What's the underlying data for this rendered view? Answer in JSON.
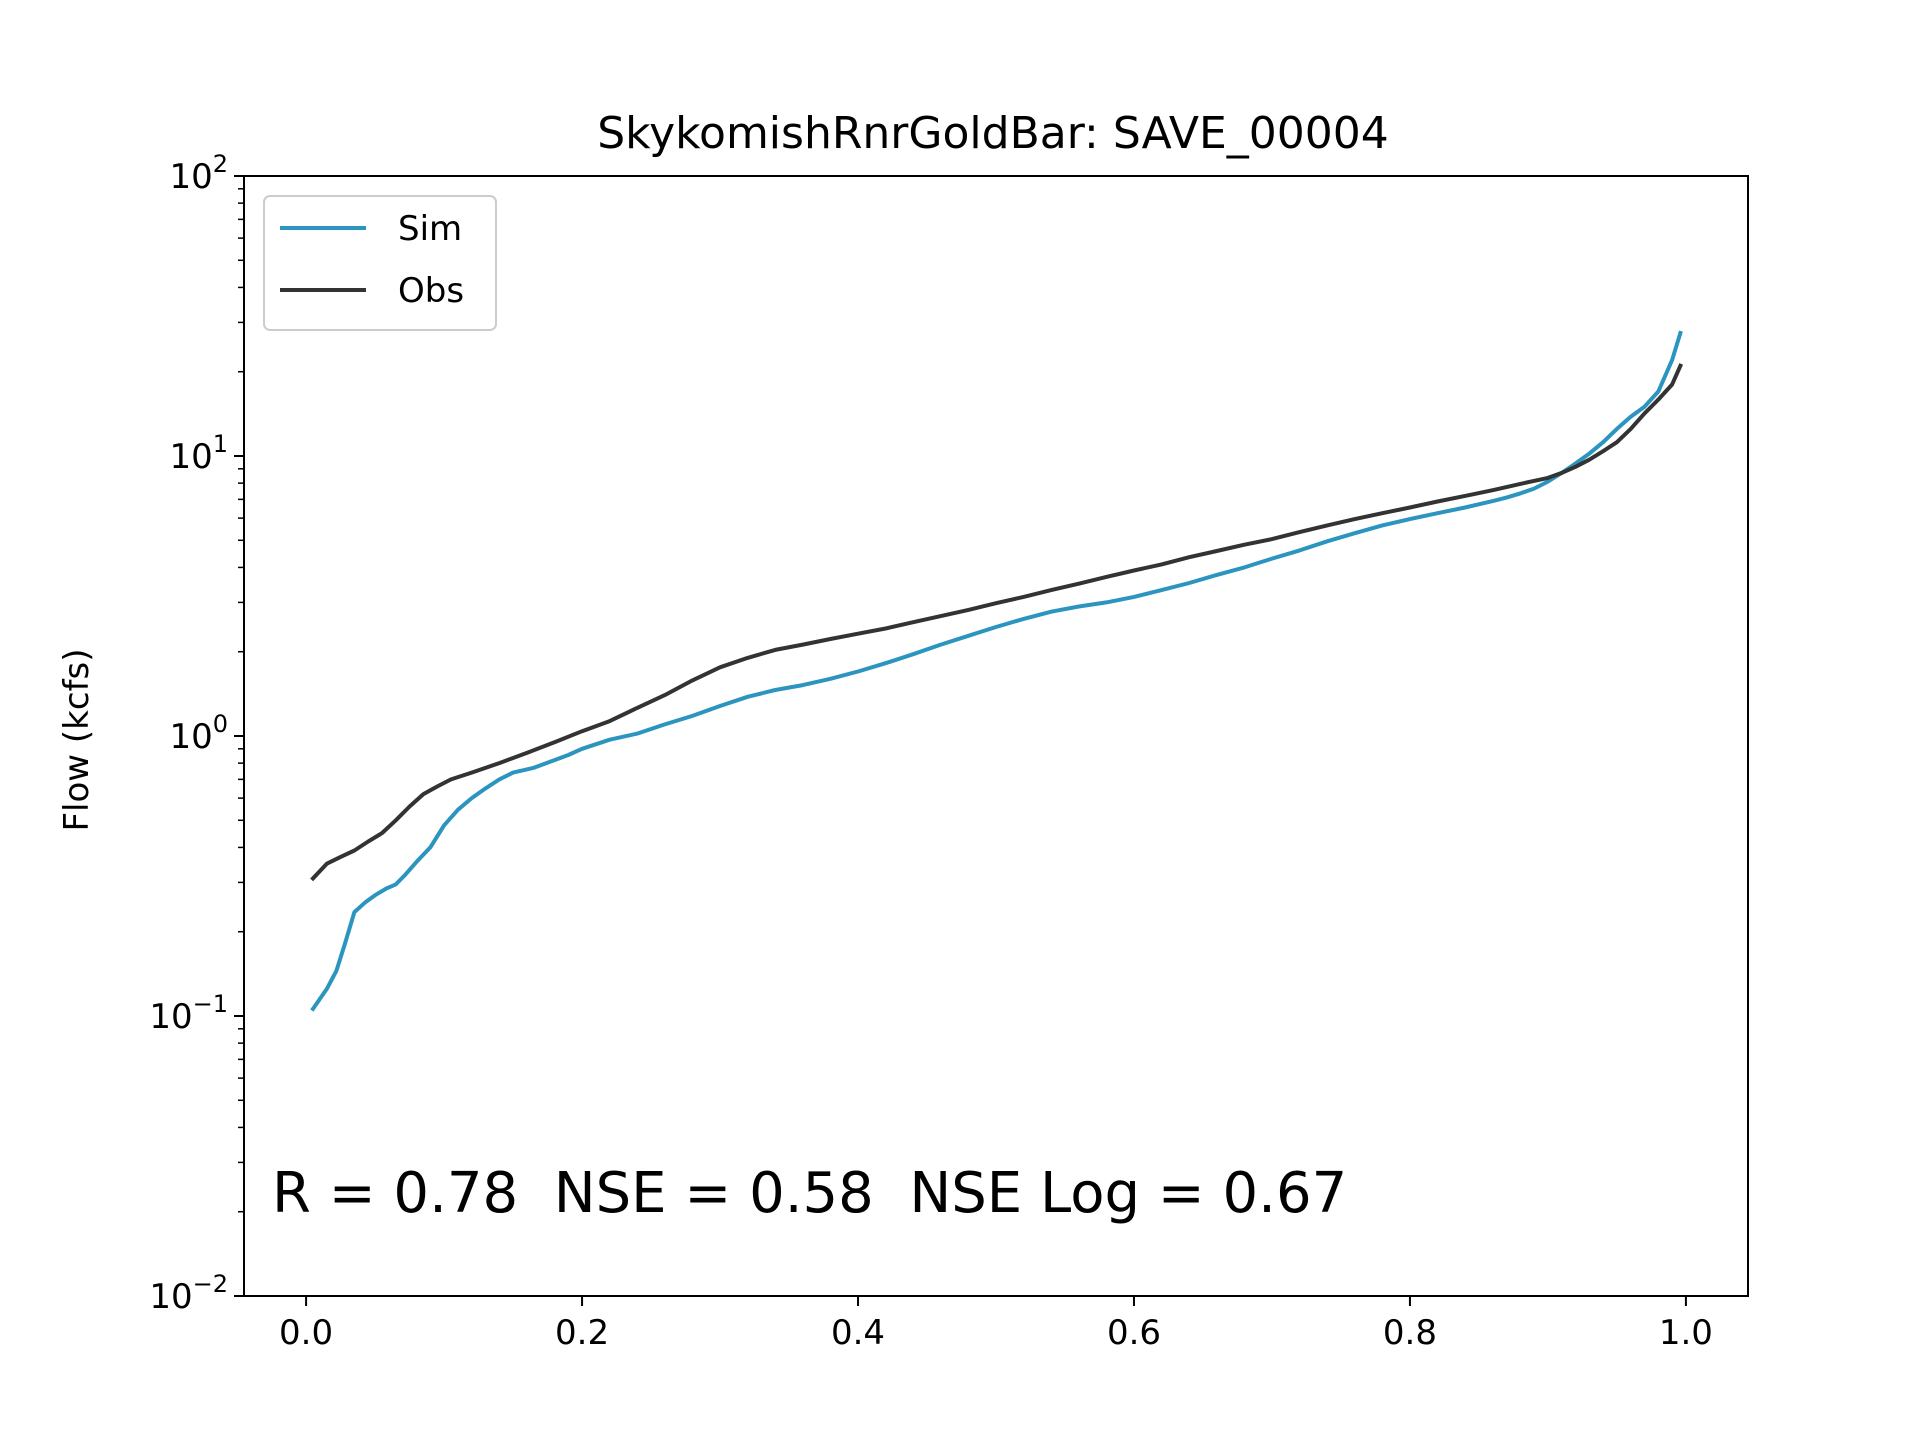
{
  "chart_data": {
    "type": "line",
    "title": "SkykomishRnrGoldBar: SAVE_00004",
    "xlabel": "",
    "ylabel": "Flow (kcfs)",
    "x_scale": "linear",
    "y_scale": "log",
    "xlim": [
      -0.045,
      1.045
    ],
    "ylim": [
      0.01,
      100
    ],
    "x_ticks": [
      0.0,
      0.2,
      0.4,
      0.6,
      0.8,
      1.0
    ],
    "x_tick_labels": [
      "0.0",
      "0.2",
      "0.4",
      "0.6",
      "0.8",
      "1.0"
    ],
    "y_ticks": [
      0.01,
      0.1,
      1,
      10,
      100
    ],
    "y_tick_labels": [
      {
        "base": "10",
        "exp": "−2"
      },
      {
        "base": "10",
        "exp": "−1"
      },
      {
        "base": "10",
        "exp": "0"
      },
      {
        "base": "10",
        "exp": "1"
      },
      {
        "base": "10",
        "exp": "2"
      }
    ],
    "grid": false,
    "legend_position": "top-left",
    "annotation": "R = 0.78  NSE = 0.58  NSE Log = 0.67",
    "series": [
      {
        "name": "Sim",
        "color": "#2b95bf",
        "points": [
          [
            0.005,
            0.106
          ],
          [
            0.015,
            0.125
          ],
          [
            0.022,
            0.145
          ],
          [
            0.028,
            0.18
          ],
          [
            0.035,
            0.235
          ],
          [
            0.043,
            0.255
          ],
          [
            0.05,
            0.27
          ],
          [
            0.058,
            0.285
          ],
          [
            0.065,
            0.295
          ],
          [
            0.072,
            0.32
          ],
          [
            0.08,
            0.355
          ],
          [
            0.09,
            0.4
          ],
          [
            0.1,
            0.48
          ],
          [
            0.11,
            0.545
          ],
          [
            0.12,
            0.6
          ],
          [
            0.13,
            0.65
          ],
          [
            0.14,
            0.7
          ],
          [
            0.15,
            0.74
          ],
          [
            0.165,
            0.77
          ],
          [
            0.18,
            0.82
          ],
          [
            0.19,
            0.855
          ],
          [
            0.2,
            0.9
          ],
          [
            0.22,
            0.97
          ],
          [
            0.24,
            1.02
          ],
          [
            0.26,
            1.1
          ],
          [
            0.28,
            1.18
          ],
          [
            0.3,
            1.28
          ],
          [
            0.32,
            1.38
          ],
          [
            0.34,
            1.46
          ],
          [
            0.36,
            1.52
          ],
          [
            0.38,
            1.6
          ],
          [
            0.4,
            1.7
          ],
          [
            0.42,
            1.82
          ],
          [
            0.44,
            1.96
          ],
          [
            0.46,
            2.12
          ],
          [
            0.48,
            2.28
          ],
          [
            0.5,
            2.45
          ],
          [
            0.52,
            2.62
          ],
          [
            0.54,
            2.78
          ],
          [
            0.56,
            2.9
          ],
          [
            0.58,
            3.0
          ],
          [
            0.6,
            3.14
          ],
          [
            0.62,
            3.32
          ],
          [
            0.64,
            3.52
          ],
          [
            0.66,
            3.76
          ],
          [
            0.68,
            4.0
          ],
          [
            0.7,
            4.3
          ],
          [
            0.72,
            4.6
          ],
          [
            0.74,
            4.96
          ],
          [
            0.76,
            5.3
          ],
          [
            0.78,
            5.65
          ],
          [
            0.8,
            5.95
          ],
          [
            0.82,
            6.25
          ],
          [
            0.84,
            6.55
          ],
          [
            0.86,
            6.9
          ],
          [
            0.87,
            7.1
          ],
          [
            0.88,
            7.35
          ],
          [
            0.89,
            7.65
          ],
          [
            0.9,
            8.1
          ],
          [
            0.91,
            8.7
          ],
          [
            0.92,
            9.4
          ],
          [
            0.93,
            10.2
          ],
          [
            0.94,
            11.2
          ],
          [
            0.95,
            12.5
          ],
          [
            0.96,
            13.8
          ],
          [
            0.97,
            15.0
          ],
          [
            0.98,
            17.0
          ],
          [
            0.99,
            22.0
          ],
          [
            0.996,
            27.5
          ]
        ]
      },
      {
        "name": "Obs",
        "color": "#333333",
        "points": [
          [
            0.005,
            0.31
          ],
          [
            0.015,
            0.35
          ],
          [
            0.025,
            0.37
          ],
          [
            0.035,
            0.39
          ],
          [
            0.045,
            0.42
          ],
          [
            0.055,
            0.45
          ],
          [
            0.065,
            0.5
          ],
          [
            0.075,
            0.56
          ],
          [
            0.085,
            0.62
          ],
          [
            0.095,
            0.66
          ],
          [
            0.105,
            0.7
          ],
          [
            0.12,
            0.74
          ],
          [
            0.14,
            0.8
          ],
          [
            0.16,
            0.87
          ],
          [
            0.18,
            0.95
          ],
          [
            0.2,
            1.04
          ],
          [
            0.22,
            1.13
          ],
          [
            0.24,
            1.26
          ],
          [
            0.26,
            1.4
          ],
          [
            0.28,
            1.58
          ],
          [
            0.3,
            1.76
          ],
          [
            0.32,
            1.9
          ],
          [
            0.34,
            2.03
          ],
          [
            0.36,
            2.12
          ],
          [
            0.38,
            2.22
          ],
          [
            0.4,
            2.32
          ],
          [
            0.42,
            2.42
          ],
          [
            0.44,
            2.55
          ],
          [
            0.46,
            2.68
          ],
          [
            0.48,
            2.82
          ],
          [
            0.5,
            2.98
          ],
          [
            0.52,
            3.14
          ],
          [
            0.54,
            3.32
          ],
          [
            0.56,
            3.5
          ],
          [
            0.58,
            3.7
          ],
          [
            0.6,
            3.9
          ],
          [
            0.62,
            4.1
          ],
          [
            0.64,
            4.35
          ],
          [
            0.66,
            4.58
          ],
          [
            0.68,
            4.82
          ],
          [
            0.7,
            5.05
          ],
          [
            0.72,
            5.35
          ],
          [
            0.74,
            5.65
          ],
          [
            0.76,
            5.95
          ],
          [
            0.78,
            6.25
          ],
          [
            0.8,
            6.55
          ],
          [
            0.82,
            6.88
          ],
          [
            0.84,
            7.2
          ],
          [
            0.86,
            7.55
          ],
          [
            0.88,
            7.95
          ],
          [
            0.9,
            8.35
          ],
          [
            0.91,
            8.7
          ],
          [
            0.92,
            9.15
          ],
          [
            0.93,
            9.7
          ],
          [
            0.94,
            10.4
          ],
          [
            0.95,
            11.2
          ],
          [
            0.96,
            12.5
          ],
          [
            0.97,
            14.2
          ],
          [
            0.98,
            15.9
          ],
          [
            0.99,
            18.0
          ],
          [
            0.996,
            21.0
          ]
        ]
      }
    ]
  }
}
